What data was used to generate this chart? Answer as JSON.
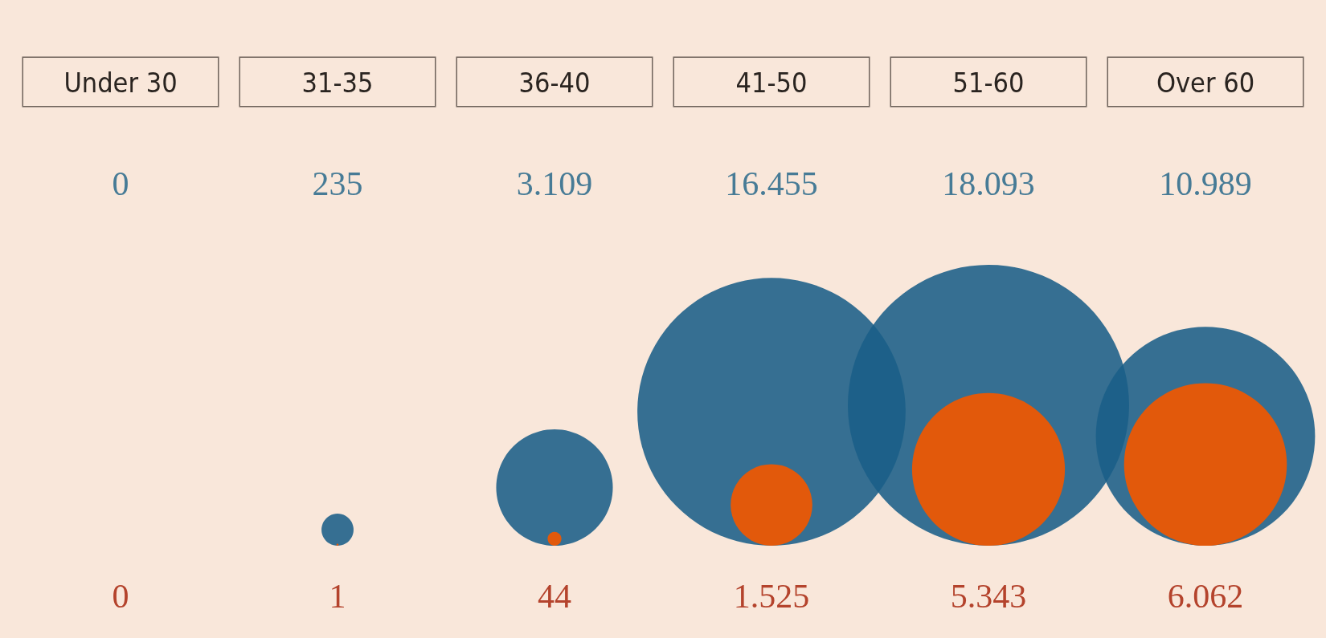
{
  "chart_data": {
    "type": "other",
    "categories": [
      "Under 30",
      "31-35",
      "36-40",
      "41-50",
      "51-60",
      "Over 60"
    ],
    "series": [
      {
        "color": "#1a5f88",
        "values": [
          0,
          235,
          3109,
          16455,
          18093,
          10989
        ],
        "value_labels": [
          "0",
          "235",
          "3.109",
          "16.455",
          "18.093",
          "10.989"
        ]
      },
      {
        "color": "#e2590b",
        "values": [
          0,
          1,
          44,
          1525,
          5343,
          6062
        ],
        "value_labels": [
          "0",
          "1",
          "44",
          "1.525",
          "5.343",
          "6.062"
        ]
      }
    ]
  }
}
